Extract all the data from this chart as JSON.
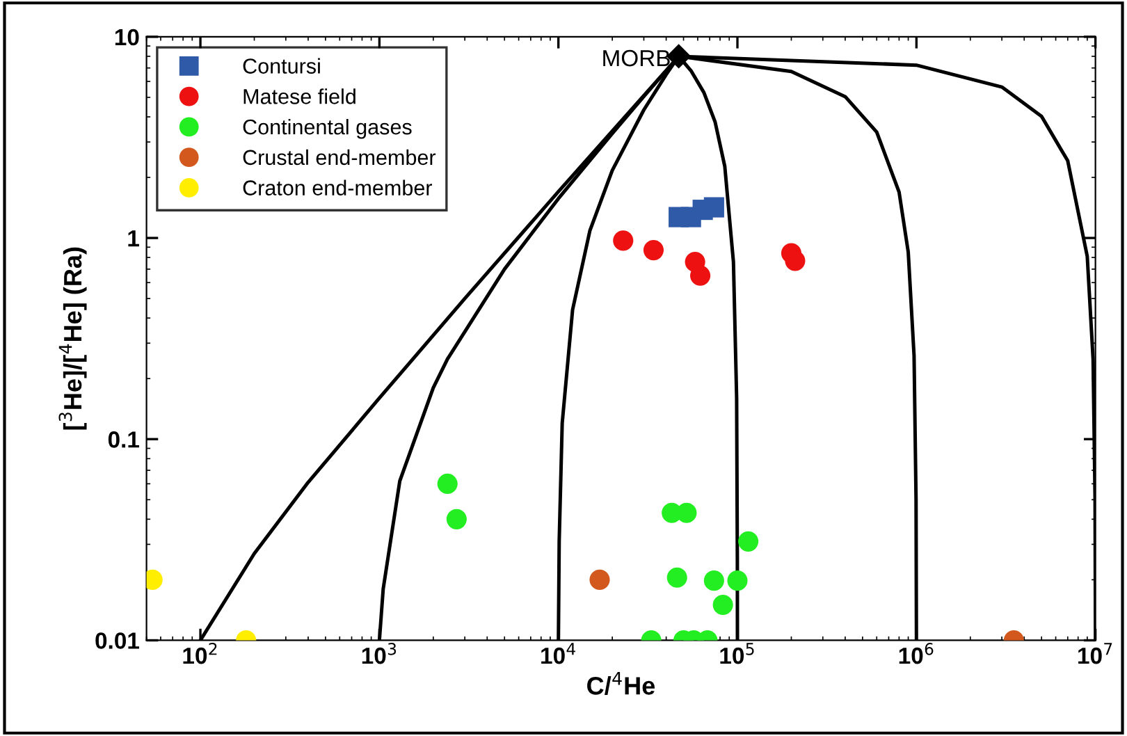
{
  "chart_data": {
    "type": "scatter",
    "xlabel": "C/$^{4}$He",
    "ylabel": "[$^{3}$He]/[$^{4}$He] (Ra)",
    "log": "xy",
    "grid": false,
    "legend": "top left",
    "xlim": [
      50,
      10000000
    ],
    "ylim": [
      0.01,
      10
    ],
    "xticks": [
      {
        "value": 100,
        "label": "10$^{2}$"
      },
      {
        "value": 1000,
        "label": "10$^{3}$"
      },
      {
        "value": 10000,
        "label": "10$^{4}$"
      },
      {
        "value": 100000,
        "label": "10$^{5}$"
      },
      {
        "value": 1000000,
        "label": "10$^{6}$"
      },
      {
        "value": 10000000,
        "label": "10$^{7}$"
      }
    ],
    "yticks": [
      0.01,
      0.1,
      1,
      10
    ],
    "annotations": [
      {
        "text": "MORB",
        "x": 47000,
        "y": 8
      }
    ],
    "series": [
      {
        "type": "line",
        "color": "#000000",
        "marker": "none",
        "x": [
          47000,
          30000,
          10000,
          3000,
          1000,
          400,
          200,
          100
        ],
        "values": [
          8,
          5.1,
          1.7,
          0.5,
          0.16,
          0.061,
          0.027,
          0.01
        ]
      },
      {
        "type": "line",
        "color": "#000000",
        "marker": "none",
        "x": [
          47000,
          30000,
          20000,
          10000,
          5000,
          2400,
          2000,
          1300,
          1050,
          1000
        ],
        "values": [
          8,
          5.05,
          3.31,
          1.57,
          0.7,
          0.25,
          0.18,
          0.062,
          0.018,
          0.01
        ]
      },
      {
        "type": "line",
        "color": "#000000",
        "marker": "none",
        "x": [
          47000,
          40000,
          30000,
          20000,
          15000,
          12000,
          10500,
          10100,
          10000
        ],
        "values": [
          8,
          6.49,
          4.33,
          2.17,
          1.09,
          0.44,
          0.12,
          0.031,
          0.01
        ]
      },
      {
        "type": "line",
        "color": "#000000",
        "marker": "none",
        "x": [
          47000,
          55000,
          65000,
          75000,
          85000,
          95000,
          99000,
          99900,
          100000
        ],
        "values": [
          8,
          6.79,
          5.28,
          3.78,
          2.27,
          0.76,
          0.16,
          0.025,
          0.01
        ]
      },
      {
        "type": "line",
        "color": "#000000",
        "marker": "none",
        "x": [
          47000,
          200000,
          400000,
          600000,
          800000,
          900000,
          970000,
          995000,
          1000000
        ],
        "values": [
          8,
          6.72,
          5.04,
          3.36,
          1.69,
          0.85,
          0.26,
          0.05,
          0.01
        ]
      },
      {
        "type": "line",
        "color": "#000000",
        "marker": "none",
        "x": [
          47000,
          1000000,
          3000000,
          5000000,
          7000000,
          9000000,
          9700000,
          9950000,
          10000000
        ],
        "values": [
          8,
          7.23,
          5.63,
          4.02,
          2.42,
          0.81,
          0.25,
          0.05,
          0.01
        ]
      },
      {
        "name": "Contursi",
        "color": "#2f5aa8",
        "marker": "square",
        "x": [
          47000,
          55000,
          64000,
          74000
        ],
        "values": [
          1.27,
          1.27,
          1.38,
          1.42
        ]
      },
      {
        "name": "Matese field",
        "color": "#ee1111",
        "marker": "circle",
        "x": [
          23000,
          34000,
          58000,
          62000,
          200000,
          210000
        ],
        "values": [
          0.97,
          0.87,
          0.76,
          0.65,
          0.84,
          0.77
        ]
      },
      {
        "name": "Continental gases",
        "color": "#22ee22",
        "marker": "circle",
        "x": [
          2400,
          2700,
          43000,
          52000,
          115000,
          46000,
          74000,
          100000,
          83000,
          33000,
          50000,
          57000,
          68000
        ],
        "values": [
          0.06,
          0.04,
          0.043,
          0.043,
          0.031,
          0.0205,
          0.0198,
          0.0198,
          0.015,
          0.01,
          0.01,
          0.01,
          0.01
        ]
      },
      {
        "name": "Crustal end-member",
        "color": "#d2581e",
        "marker": "circle",
        "x": [
          17000,
          3500000
        ],
        "values": [
          0.02,
          0.01
        ]
      },
      {
        "name": "Craton end-member",
        "color": "#ffee00",
        "marker": "circle",
        "x": [
          54,
          180
        ],
        "values": [
          0.02,
          0.01
        ]
      }
    ]
  }
}
